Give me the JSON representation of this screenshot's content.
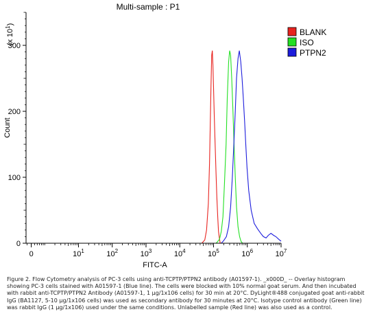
{
  "chart_data": {
    "type": "line",
    "title": "Multi-sample : P1",
    "xlabel": "FITC-A",
    "ylabel": "Count",
    "y_multiplier": "(x 10",
    "y_multiplier_exp": "1",
    "xscale": "log",
    "xlim": [
      1,
      10000000
    ],
    "ylim": [
      0,
      350
    ],
    "x_ticks": [
      {
        "label": "0",
        "value": 0.4
      },
      {
        "label": "10",
        "exp": "1",
        "value": 10
      },
      {
        "label": "10",
        "exp": "2",
        "value": 100
      },
      {
        "label": "10",
        "exp": "3",
        "value": 1000
      },
      {
        "label": "10",
        "exp": "4",
        "value": 10000
      },
      {
        "label": "10",
        "exp": "5",
        "value": 100000
      },
      {
        "label": "10",
        "exp": "6",
        "value": 1000000
      },
      {
        "label": "10",
        "exp": "7",
        "value": 10000000
      }
    ],
    "y_ticks": [
      "0",
      "100",
      "200",
      "300"
    ],
    "legend_position": "top-right",
    "series": [
      {
        "name": "BLANK",
        "color": "#e8231f",
        "x": [
          45000,
          55000,
          62000,
          70000,
          76000,
          80000,
          84000,
          88000,
          92000,
          96000,
          100000,
          105000,
          110000,
          118000,
          125000,
          133000,
          140000,
          150000,
          158000
        ],
        "y": [
          0,
          5,
          20,
          60,
          120,
          180,
          240,
          285,
          292,
          270,
          235,
          195,
          160,
          110,
          70,
          40,
          18,
          6,
          0
        ]
      },
      {
        "name": "ISO",
        "color": "#22e022",
        "x": [
          120000,
          150000,
          170000,
          190000,
          210000,
          235000,
          255000,
          280000,
          300000,
          320000,
          345000,
          375000,
          405000,
          440000,
          480000,
          530000,
          590000,
          650000,
          720000
        ],
        "y": [
          0,
          6,
          18,
          40,
          90,
          150,
          220,
          275,
          292,
          285,
          250,
          200,
          150,
          100,
          55,
          25,
          10,
          3,
          0
        ]
      },
      {
        "name": "PTPN2",
        "color": "#1c1cdc",
        "x": [
          170000,
          200000,
          240000,
          280000,
          320000,
          360000,
          400000,
          440000,
          480000,
          530000,
          580000,
          640000,
          700000,
          760000,
          830000,
          900000,
          980000,
          1100000,
          1300000,
          1600000,
          2000000,
          2500000,
          3000000,
          3600000,
          4200000,
          5000000,
          6000000,
          7000000,
          8500000,
          10000000
        ],
        "y": [
          0,
          4,
          10,
          25,
          55,
          100,
          150,
          200,
          250,
          280,
          292,
          275,
          250,
          220,
          185,
          150,
          115,
          80,
          50,
          30,
          22,
          15,
          10,
          8,
          12,
          15,
          12,
          10,
          6,
          3
        ]
      }
    ]
  },
  "caption": "Figure 2. Flow Cytometry analysis of PC-3 cells using anti-TCPTP/PTPN2 antibody (A01597-1). _x000D_ -- Overlay histogram showing PC-3 cells stained with A01597-1 (Blue line). The cells were blocked with 10% normal goat serum. And then incubated with rabbit anti-TCPTP/PTPN2 Antibody (A01597-1, 1 μg/1x106 cells) for 30 min at 20°C. DyLight®488 conjugated goat anti-rabbit IgG (BA1127, 5-10 μg/1x106 cells) was used as secondary antibody for 30 minutes at 20°C. Isotype control antibody (Green line) was rabbit IgG (1 μg/1x106) used under the same conditions. Unlabelled sample (Red line) was also used as a control."
}
